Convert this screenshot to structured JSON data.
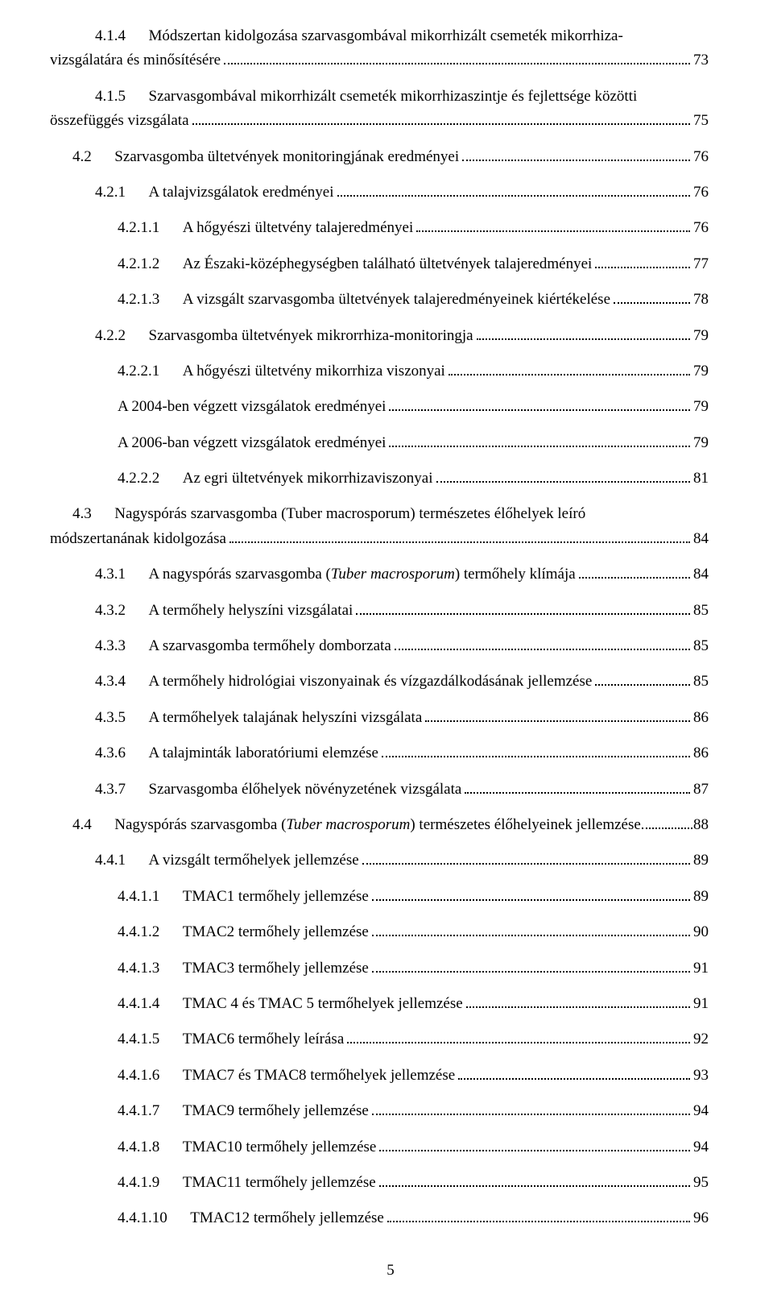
{
  "page_number": "5",
  "entries": [
    {
      "cls": "lvl-2",
      "wrap": true,
      "num": "4.1.4",
      "title1": "Módszertan kidolgozása szarvasgombával mikorrhizált csemeték mikorrhiza-",
      "title2": "vizsgálatára és minősítésére",
      "wrap_indent": "-56",
      "page": "73"
    },
    {
      "cls": "lvl-2",
      "wrap": true,
      "num": "4.1.5",
      "title1": "Szarvasgombával mikorrhizált csemeték mikorrhizaszintje és fejlettsége közötti",
      "title2": "összefüggés vizsgálata",
      "wrap_indent": "-56",
      "page": "75"
    },
    {
      "cls": "lvl-1",
      "num": "4.2",
      "title": "Szarvasgomba ültetvények monitoringjának eredményei",
      "page": "76"
    },
    {
      "cls": "lvl-2",
      "num": "4.2.1",
      "title": "A talajvizsgálatok eredményei",
      "page": "76"
    },
    {
      "cls": "lvl-3",
      "num": "4.2.1.1",
      "title": "A hőgyészi ültetvény talajeredményei",
      "page": "76"
    },
    {
      "cls": "lvl-3",
      "num": "4.2.1.2",
      "title": "Az Északi-középhegységben található ültetvények talajeredményei",
      "page": "77"
    },
    {
      "cls": "lvl-3",
      "num": "4.2.1.3",
      "title": "A vizsgált szarvasgomba ültetvények talajeredményeinek kiértékelése",
      "page": "78"
    },
    {
      "cls": "lvl-2",
      "num": "4.2.2",
      "title": "Szarvasgomba ültetvények mikrorrhiza-monitoringja",
      "page": "79"
    },
    {
      "cls": "lvl-3",
      "num": "4.2.2.1",
      "title": "A hőgyészi ültetvény mikorrhiza viszonyai",
      "page": "79"
    },
    {
      "cls": "lvl-blank",
      "num": "",
      "title": "A 2004-ben végzett vizsgálatok eredményei",
      "page": "79"
    },
    {
      "cls": "lvl-blank",
      "num": "",
      "title": "A 2006-ban végzett vizsgálatok eredményei",
      "page": "79"
    },
    {
      "cls": "lvl-3",
      "num": "4.2.2.2",
      "title": "Az egri ültetvények mikorrhizaviszonyai",
      "page": "81"
    },
    {
      "cls": "lvl-1",
      "wrap": true,
      "num": "4.3",
      "title1": "Nagyspórás szarvasgomba (<i>Tuber macrosporum</i>) természetes élőhelyek leíró",
      "title2": "módszertanának kidolgozása",
      "wrap_indent": "-28",
      "page": "84"
    },
    {
      "cls": "lvl-2",
      "num": "4.3.1",
      "title": "A nagyspórás szarvasgomba (<i>Tuber macrosporum</i>) termőhely klímája",
      "page": "84"
    },
    {
      "cls": "lvl-2",
      "num": "4.3.2",
      "title": "A termőhely helyszíni vizsgálatai",
      "page": "85"
    },
    {
      "cls": "lvl-2",
      "num": "4.3.3",
      "title": "A szarvasgomba termőhely domborzata",
      "page": "85"
    },
    {
      "cls": "lvl-2",
      "num": "4.3.4",
      "title": "A termőhely hidrológiai viszonyainak és vízgazdálkodásának jellemzése",
      "page": "85"
    },
    {
      "cls": "lvl-2",
      "num": "4.3.5",
      "title": "A termőhelyek talajának helyszíni vizsgálata",
      "page": "86"
    },
    {
      "cls": "lvl-2",
      "num": "4.3.6",
      "title": "A talajminták laboratóriumi elemzése",
      "page": "86"
    },
    {
      "cls": "lvl-2",
      "num": "4.3.7",
      "title": "Szarvasgomba élőhelyek növényzetének vizsgálata",
      "page": "87"
    },
    {
      "cls": "lvl-1",
      "num": "4.4",
      "title": "Nagyspórás szarvasgomba (<i>Tuber macrosporum</i>) természetes élőhelyeinek jellemzése",
      "page": "88",
      "tight": true
    },
    {
      "cls": "lvl-2",
      "num": "4.4.1",
      "title": "A vizsgált termőhelyek jellemzése",
      "page": "89"
    },
    {
      "cls": "lvl-3",
      "num": "4.4.1.1",
      "title": "TMAC1 termőhely jellemzése",
      "page": "89"
    },
    {
      "cls": "lvl-3",
      "num": "4.4.1.2",
      "title": "TMAC2 termőhely jellemzése",
      "page": "90"
    },
    {
      "cls": "lvl-3",
      "num": "4.4.1.3",
      "title": "TMAC3 termőhely jellemzése",
      "page": "91"
    },
    {
      "cls": "lvl-3",
      "num": "4.4.1.4",
      "title": "TMAC 4 és TMAC 5 termőhelyek jellemzése",
      "page": "91"
    },
    {
      "cls": "lvl-3",
      "num": "4.4.1.5",
      "title": "TMAC6 termőhely leírása",
      "page": "92"
    },
    {
      "cls": "lvl-3",
      "num": "4.4.1.6",
      "title": "TMAC7 és TMAC8 termőhelyek jellemzése",
      "page": "93"
    },
    {
      "cls": "lvl-3",
      "num": "4.4.1.7",
      "title": "TMAC9 termőhely jellemzése",
      "page": "94"
    },
    {
      "cls": "lvl-3",
      "num": "4.4.1.8",
      "title": "TMAC10 termőhely jellemzése",
      "page": "94"
    },
    {
      "cls": "lvl-3",
      "num": "4.4.1.9",
      "title": "TMAC11 termőhely jellemzése",
      "page": "95"
    },
    {
      "cls": "lvl-3",
      "num": "4.4.1.10",
      "title": "TMAC12 termőhely jellemzése",
      "page": "96"
    }
  ]
}
